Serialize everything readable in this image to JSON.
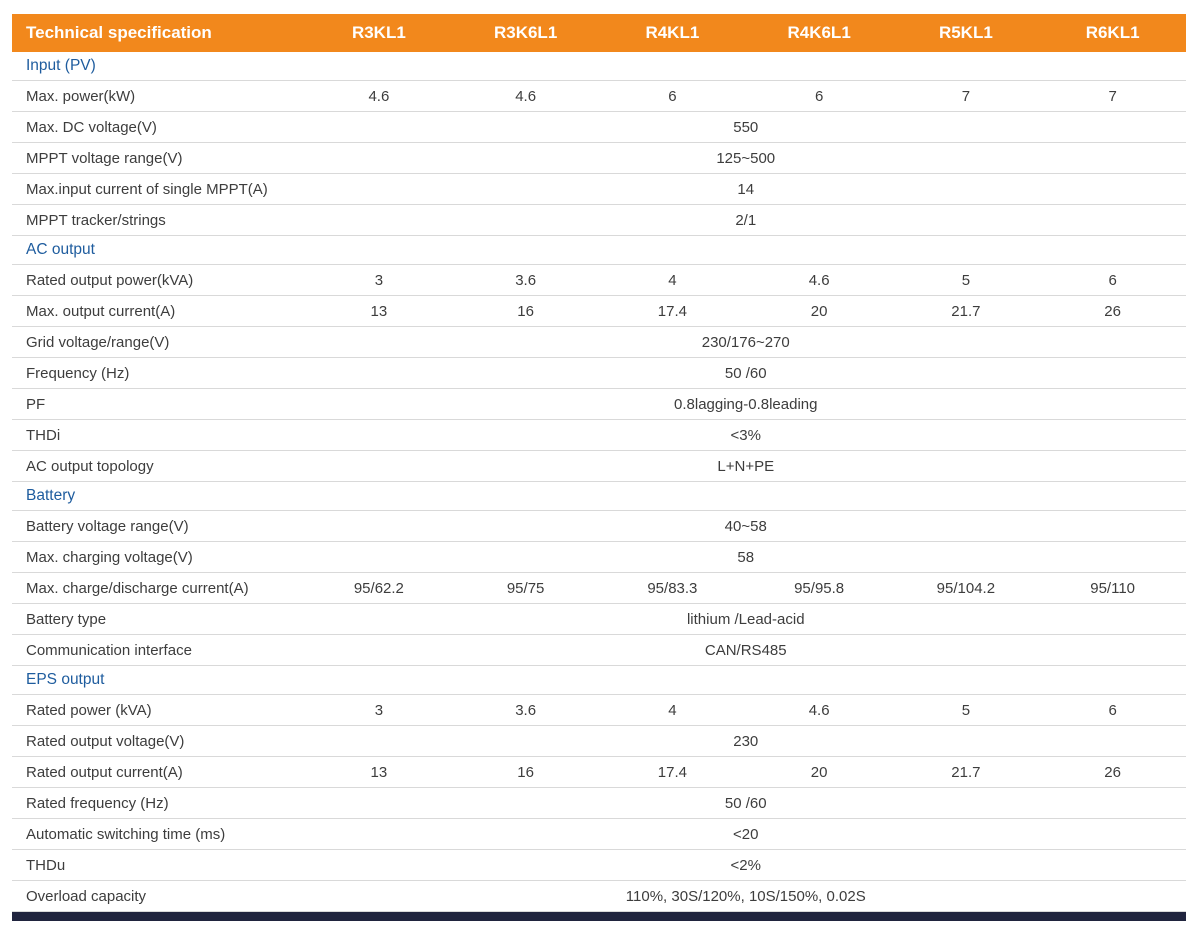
{
  "table": {
    "title": "Technical specification",
    "models": [
      "R3KL1",
      "R3K6L1",
      "R4KL1",
      "R4K6L1",
      "R5KL1",
      "R6KL1"
    ],
    "sections": [
      {
        "title": "Input (PV)",
        "rows": [
          {
            "label": "Max. power(kW)",
            "values": [
              "4.6",
              "4.6",
              "6",
              "6",
              "7",
              "7"
            ]
          },
          {
            "label": "Max. DC voltage(V)",
            "merged": "550"
          },
          {
            "label": "MPPT voltage range(V)",
            "merged": "125~500"
          },
          {
            "label": "Max.input current of single MPPT(A)",
            "merged": "14"
          },
          {
            "label": "MPPT tracker/strings",
            "merged": "2/1"
          }
        ]
      },
      {
        "title": "AC output",
        "rows": [
          {
            "label": "Rated output power(kVA)",
            "values": [
              "3",
              "3.6",
              "4",
              "4.6",
              "5",
              "6"
            ]
          },
          {
            "label": "Max. output current(A)",
            "values": [
              "13",
              "16",
              "17.4",
              "20",
              "21.7",
              "26"
            ]
          },
          {
            "label": "Grid voltage/range(V)",
            "merged": "230/176~270"
          },
          {
            "label": "Frequency (Hz)",
            "merged": "50 /60"
          },
          {
            "label": "PF",
            "merged": "0.8lagging-0.8leading"
          },
          {
            "label": "THDi",
            "merged": "<3%"
          },
          {
            "label": "AC output topology",
            "merged": "L+N+PE"
          }
        ]
      },
      {
        "title": "Battery",
        "rows": [
          {
            "label": "Battery voltage range(V)",
            "merged": "40~58"
          },
          {
            "label": "Max. charging voltage(V)",
            "merged": "58"
          },
          {
            "label": "Max. charge/discharge current(A)",
            "values": [
              "95/62.2",
              "95/75",
              "95/83.3",
              "95/95.8",
              "95/104.2",
              "95/110"
            ]
          },
          {
            "label": "Battery type",
            "merged": "lithium /Lead-acid"
          },
          {
            "label": "Communication interface",
            "merged": "CAN/RS485"
          }
        ]
      },
      {
        "title": "EPS output",
        "rows": [
          {
            "label": "Rated power (kVA)",
            "values": [
              "3",
              "3.6",
              "4",
              "4.6",
              "5",
              "6"
            ]
          },
          {
            "label": "Rated output voltage(V)",
            "merged": "230"
          },
          {
            "label": "Rated output current(A)",
            "values": [
              "13",
              "16",
              "17.4",
              "20",
              "21.7",
              "26"
            ]
          },
          {
            "label": "Rated frequency (Hz)",
            "merged": "50 /60"
          },
          {
            "label": "Automatic switching time (ms)",
            "merged": "<20"
          },
          {
            "label": "THDu",
            "merged": "<2%"
          },
          {
            "label": "Overload capacity",
            "merged": "110%, 30S/120%, 10S/150%, 0.02S"
          }
        ]
      }
    ]
  },
  "colors": {
    "header_bg": "#F2881C",
    "header_text": "#FFFFFF",
    "section_text": "#1E5C9E",
    "body_text": "#3D3D3D",
    "row_border": "#D9D9D9",
    "footer_bar": "#20243E"
  }
}
